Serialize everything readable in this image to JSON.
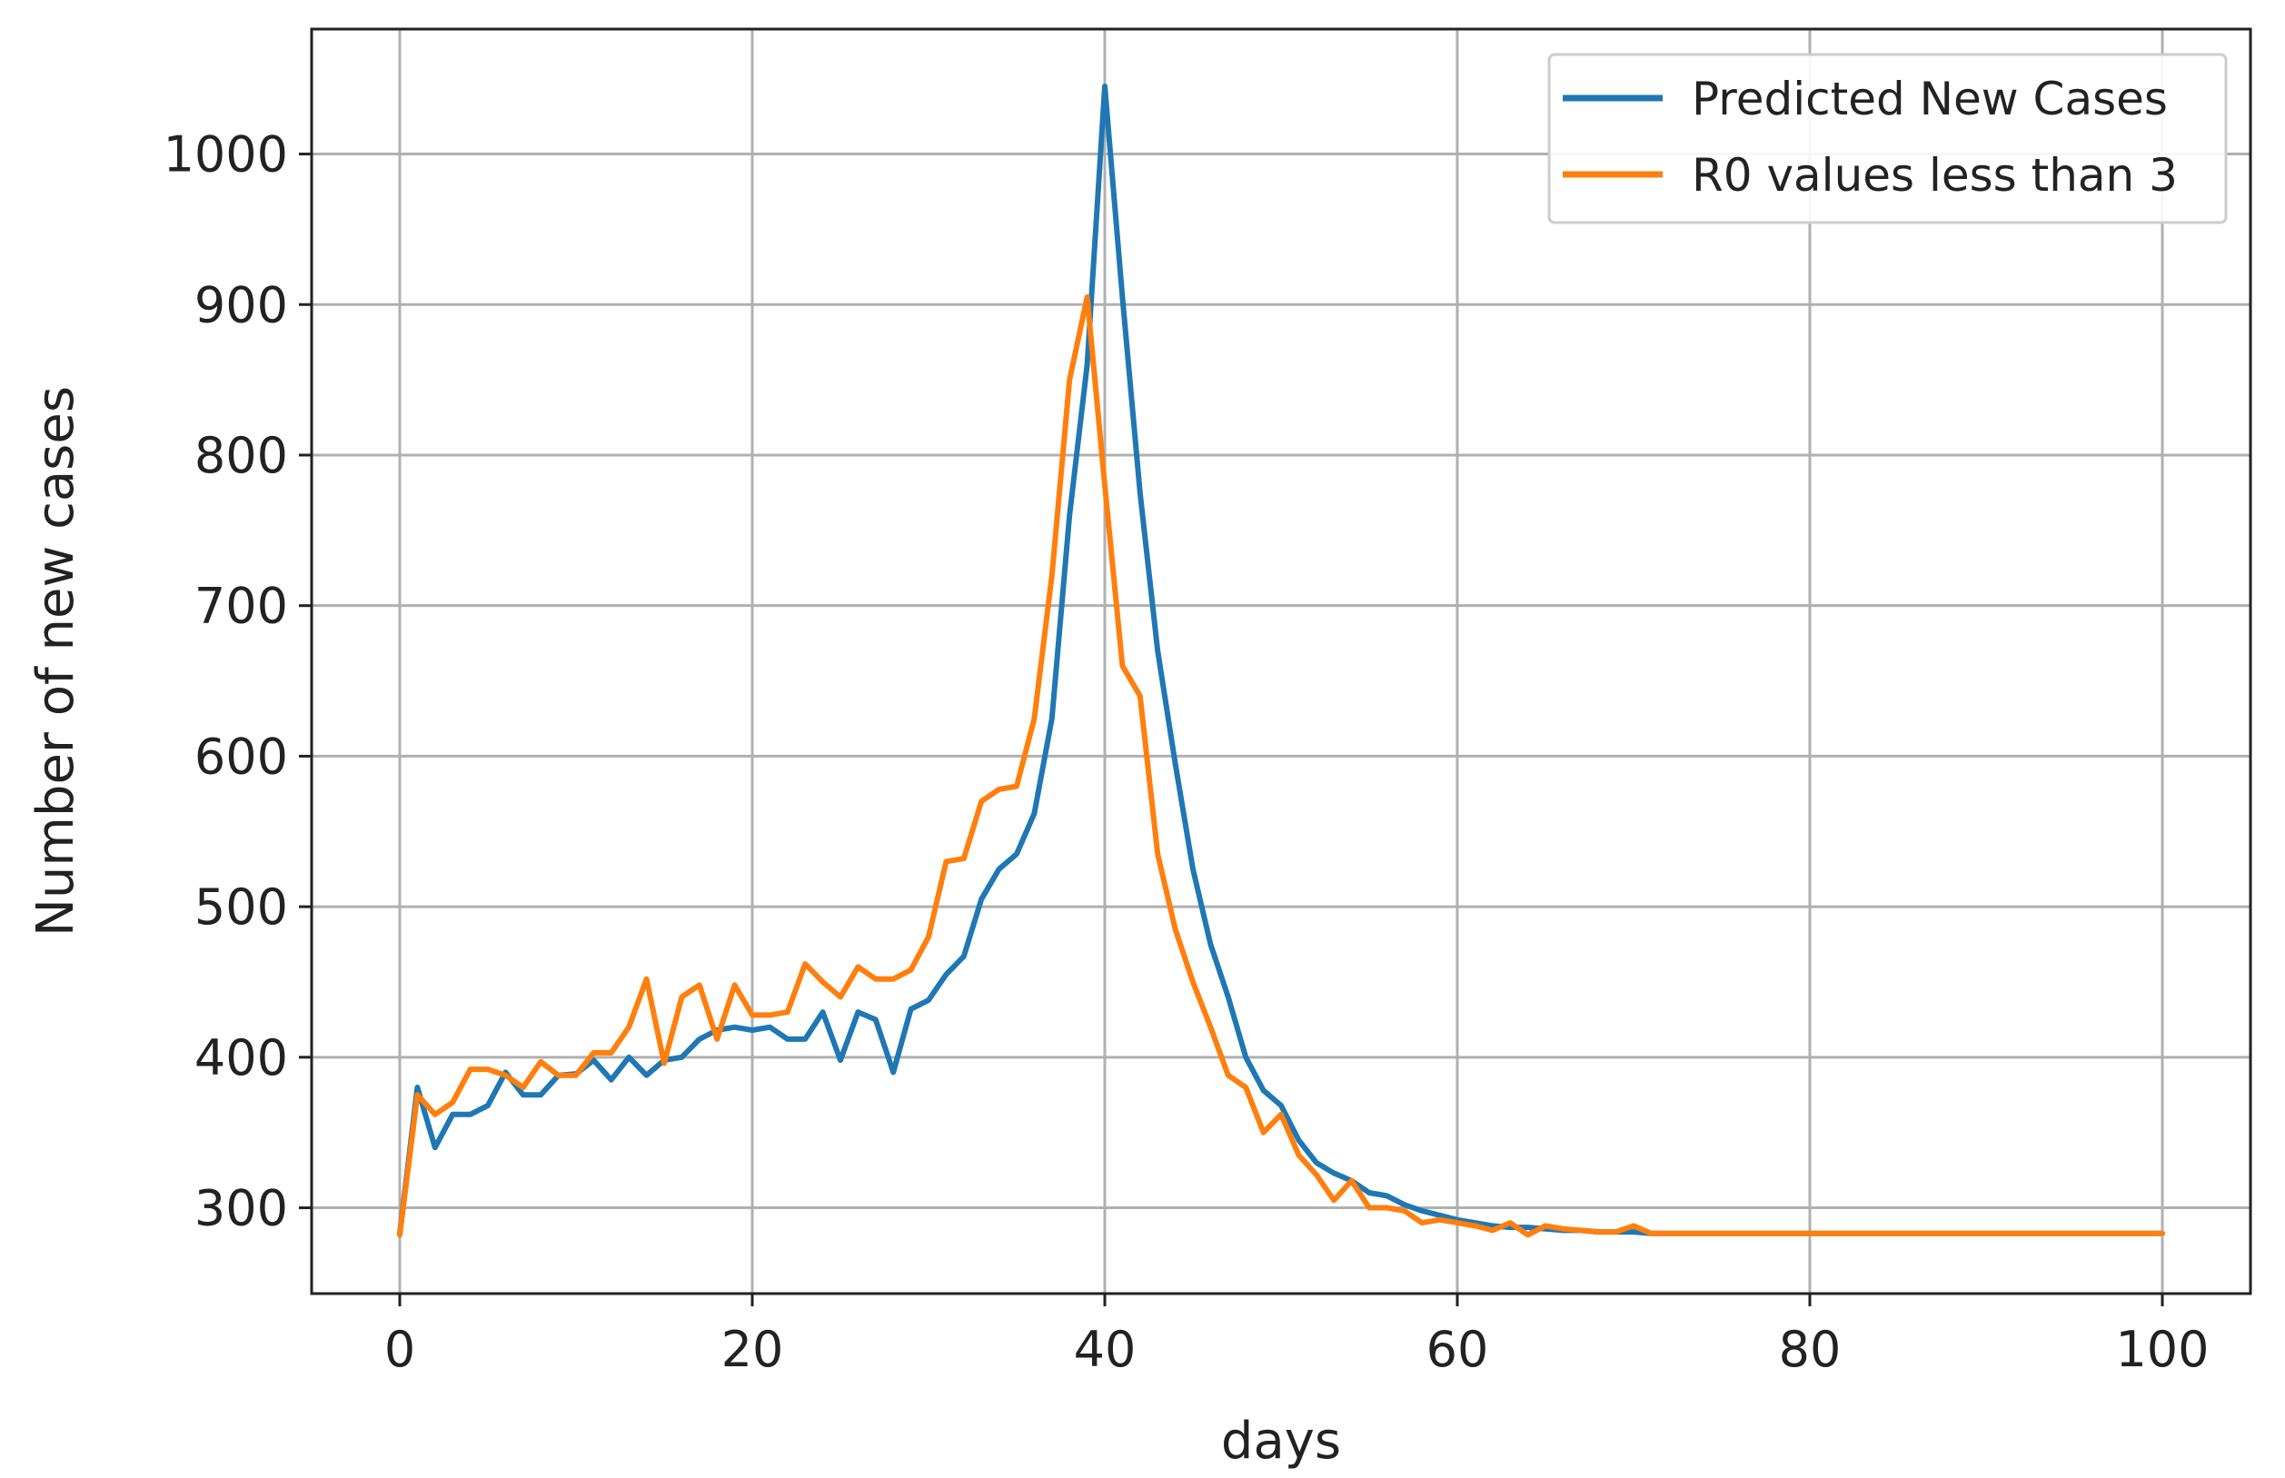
{
  "chart_data": {
    "type": "line",
    "title": "",
    "xlabel": "days",
    "ylabel": "Number of new cases",
    "xlim": [
      -5,
      105
    ],
    "ylim": [
      243,
      1083
    ],
    "xticks": [
      0,
      20,
      40,
      60,
      80,
      100
    ],
    "yticks": [
      300,
      400,
      500,
      600,
      700,
      800,
      900,
      1000
    ],
    "grid": true,
    "legend_position": "top-right",
    "series": [
      {
        "name": "Predicted New Cases",
        "color": "#1f77b4",
        "values": [
          283,
          380,
          340,
          362,
          362,
          368,
          390,
          375,
          375,
          388,
          389,
          398,
          385,
          400,
          388,
          398,
          400,
          412,
          418,
          420,
          418,
          420,
          412,
          412,
          430,
          398,
          430,
          425,
          390,
          432,
          438,
          455,
          467,
          505,
          525,
          535,
          562,
          625,
          760,
          860,
          1045,
          905,
          775,
          670,
          595,
          525,
          475,
          440,
          400,
          378,
          368,
          345,
          330,
          323,
          318,
          310,
          308,
          302,
          298,
          295,
          292,
          290,
          288,
          287,
          287,
          286,
          285,
          285,
          284,
          284,
          284,
          283,
          283,
          283,
          283,
          283,
          283,
          283,
          283,
          283,
          283,
          283,
          283,
          283,
          283,
          283,
          283,
          283,
          283,
          283,
          283,
          283,
          283,
          283,
          283,
          283,
          283,
          283,
          283,
          283,
          283
        ]
      },
      {
        "name": "R0 values less than 3",
        "color": "#ff7f0e",
        "values": [
          282,
          375,
          362,
          370,
          392,
          392,
          388,
          380,
          397,
          388,
          388,
          403,
          403,
          420,
          452,
          396,
          440,
          448,
          412,
          448,
          428,
          428,
          430,
          462,
          450,
          440,
          460,
          452,
          452,
          458,
          480,
          530,
          532,
          570,
          578,
          580,
          625,
          720,
          850,
          905,
          780,
          660,
          640,
          535,
          485,
          450,
          420,
          388,
          380,
          350,
          362,
          335,
          322,
          305,
          318,
          300,
          300,
          298,
          290,
          292,
          290,
          288,
          285,
          290,
          282,
          288,
          286,
          285,
          284,
          284,
          288,
          283,
          283,
          283,
          283,
          283,
          283,
          283,
          283,
          283,
          283,
          283,
          283,
          283,
          283,
          283,
          283,
          283,
          283,
          283,
          283,
          283,
          283,
          283,
          283,
          283,
          283,
          283,
          283,
          283,
          283
        ]
      }
    ]
  }
}
